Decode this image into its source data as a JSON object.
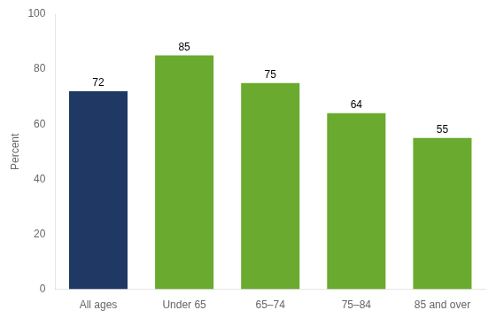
{
  "chart_data": {
    "type": "bar",
    "categories": [
      "All ages",
      "Under 65",
      "65–74",
      "75–84",
      "85 and over"
    ],
    "values": [
      72,
      85,
      75,
      64,
      55
    ],
    "colors": [
      "#1f3864",
      "#6aaa2e",
      "#6aaa2e",
      "#6aaa2e",
      "#6aaa2e"
    ],
    "ylabel": "Percent",
    "ylim": [
      0,
      100
    ],
    "yticks": [
      0,
      20,
      40,
      60,
      80,
      100
    ],
    "grid": false,
    "data_labels": true
  }
}
